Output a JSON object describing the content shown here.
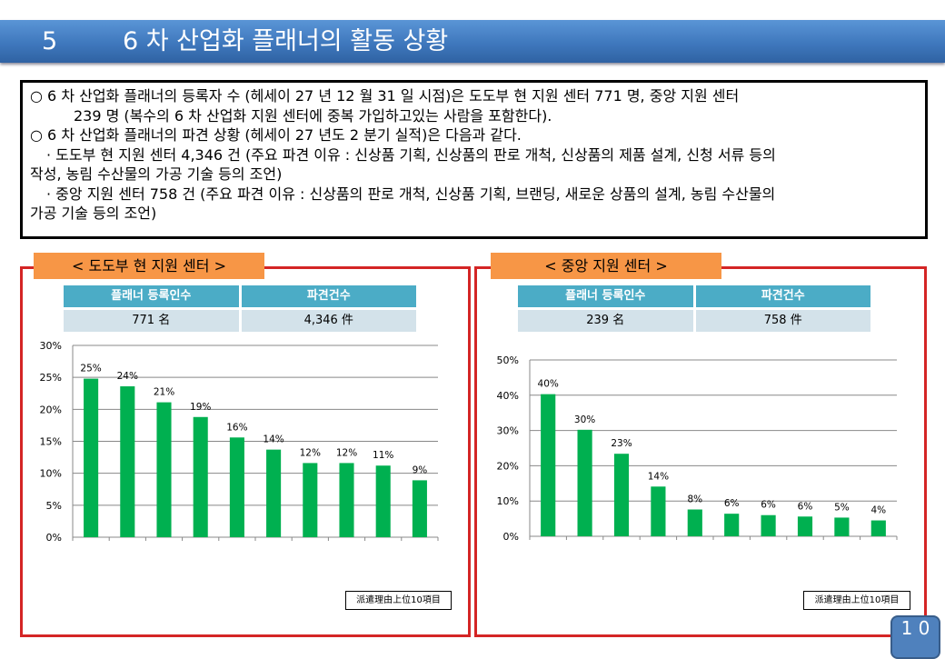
{
  "header": {
    "section_number": "5",
    "title": "6 차 산업화 플래너의 활동 상황"
  },
  "summary": {
    "lines": [
      "○ 6 차 산업화 플래너의 등록자 수 (헤세이 27 년 12 월 31 일 시점)은 도도부 현 지원 센터 771 명, 중앙 지원 센터",
      "239 명 (복수의 6 차 산업화 지원 센터에 중복 가입하고있는 사람을 포함한다).",
      "○ 6 차 산업화 플래너의 파견 상황 (헤세이 27 년도 2 분기 실적)은 다음과 같다.",
      "· 도도부 현 지원 센터 4,346 건 (주요 파견 이유 : 신상품 기획, 신상품의 판로 개척, 신상품의 제품 설계, 신청 서류 등의",
      "작성, 농림 수산물의 가공 기술 등의 조언)",
      "· 중앙 지원 센터 758 건 (주요 파견 이유 : 신상품의 판로 개척, 신상품 기획, 브랜딩, 새로운 상품의 설계, 농림 수산물의",
      "가공 기술 등의 조언)"
    ]
  },
  "left_panel": {
    "label": "< 도도부 현 지원 센터 >",
    "table": {
      "headers": [
        "플래너 등록인수",
        "파견건수"
      ],
      "values": [
        "771 名",
        "4,346 件"
      ]
    },
    "legend": "派遣理由上位10項目"
  },
  "right_panel": {
    "label": "< 중앙 지원 센터 >",
    "table": {
      "headers": [
        "플래너 등록인수",
        "파견건수"
      ],
      "values": [
        "239 名",
        "758 件"
      ]
    },
    "legend": "派遣理由上位10項目"
  },
  "page_number": "1 0",
  "chart_data": [
    {
      "type": "bar",
      "title": "",
      "xlabel": "",
      "ylabel": "",
      "ylim": [
        0,
        30
      ],
      "yticks": [
        "0%",
        "5%",
        "10%",
        "15%",
        "20%",
        "25%",
        "30%"
      ],
      "grid": true,
      "color": "#00b050",
      "values": [
        24.8,
        23.6,
        21.1,
        18.8,
        15.6,
        13.7,
        11.6,
        11.6,
        11.2,
        8.9
      ],
      "labels": [
        "25%",
        "24%",
        "21%",
        "19%",
        "16%",
        "14%",
        "12%",
        "12%",
        "11%",
        "9%"
      ]
    },
    {
      "type": "bar",
      "title": "",
      "xlabel": "",
      "ylabel": "",
      "ylim": [
        0,
        50
      ],
      "yticks": [
        "0%",
        "10%",
        "20%",
        "30%",
        "40%",
        "50%"
      ],
      "grid": true,
      "color": "#00b050",
      "values": [
        40.3,
        30.2,
        23.4,
        14.1,
        7.6,
        6.4,
        6.0,
        5.6,
        5.3,
        4.5
      ],
      "labels": [
        "40%",
        "30%",
        "23%",
        "14%",
        "8%",
        "6%",
        "6%",
        "6%",
        "5%",
        "4%"
      ]
    }
  ]
}
